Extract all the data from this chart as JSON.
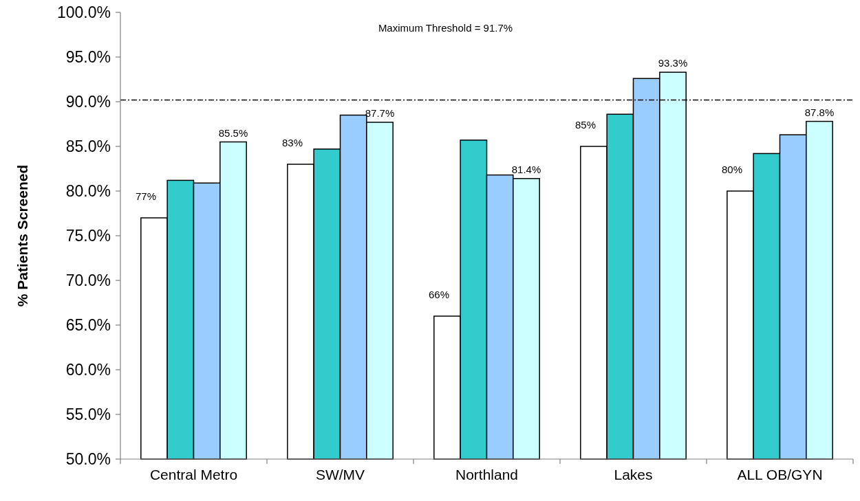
{
  "chart_data": {
    "type": "bar",
    "ylabel": "% Patients Screened",
    "categories": [
      "Central Metro",
      "SW/MV",
      "Northland",
      "Lakes",
      "ALL OB/GYN"
    ],
    "series": [
      {
        "color": "#ffffff",
        "values": [
          77,
          83,
          66,
          85,
          80
        ],
        "value_labels": [
          "77%",
          "83%",
          "66%",
          "85%",
          "80%"
        ]
      },
      {
        "color": "#33cccc",
        "values": [
          81.2,
          84.7,
          85.7,
          88.6,
          84.2
        ]
      },
      {
        "color": "#99ccff",
        "values": [
          80.9,
          88.5,
          81.8,
          92.6,
          86.3
        ]
      },
      {
        "color": "#ccffff",
        "values": [
          85.5,
          87.7,
          81.4,
          93.3,
          87.8
        ],
        "value_labels": [
          "85.5%",
          "87.7%",
          "81.4%",
          "93.3%",
          "87.8%"
        ]
      }
    ],
    "ylim": [
      50,
      100
    ],
    "yticks": [
      {
        "value": 50,
        "label": "50.0%"
      },
      {
        "value": 55,
        "label": "55.0%"
      },
      {
        "value": 60,
        "label": "60.0%"
      },
      {
        "value": 65,
        "label": "65.0%"
      },
      {
        "value": 70,
        "label": "70.0%"
      },
      {
        "value": 75,
        "label": "75.0%"
      },
      {
        "value": 80,
        "label": "80.0%"
      },
      {
        "value": 85,
        "label": "85.0%"
      },
      {
        "value": 90,
        "label": "90.0%"
      },
      {
        "value": 95,
        "label": "95.0%"
      },
      {
        "value": 100,
        "label": "100.0%"
      }
    ],
    "ref_lines": [
      {
        "axis": "y",
        "value": 90.2,
        "color": "#000000",
        "line_style": "dashdot"
      }
    ],
    "annotations": [
      "Maximum Threshold = 91.7%"
    ]
  }
}
